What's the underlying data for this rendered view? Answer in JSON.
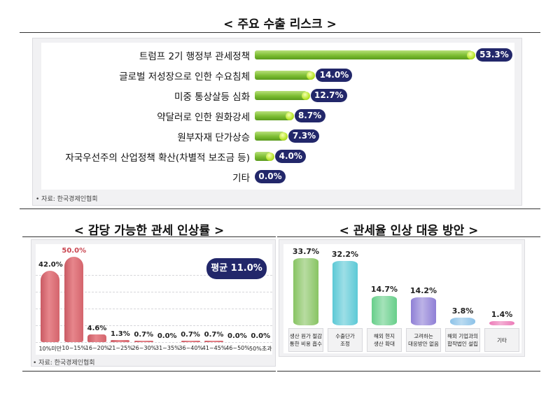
{
  "risk": {
    "title": "< 주요 수출 리스크 >",
    "source": "• 자료: 한국경제인협회",
    "colors": {
      "bar": "#7cbd32",
      "pill": "#22276a"
    }
  },
  "tariff": {
    "title": "< 감당 가능한 관세 인상률 >",
    "average_label": "평균 11.0%",
    "source": "• 자료: 한국경제인협회",
    "colors": {
      "bar": "#d4646c",
      "highlight_value": "#c94550"
    }
  },
  "response": {
    "title": "< 관세율 인상 대응 방안 >"
  },
  "chart_data": [
    {
      "type": "bar",
      "orientation": "horizontal",
      "title": "< 주요 수출 리스크 >",
      "categories": [
        "트럼프 2기 행정부 관세정책",
        "글로벌 저성장으로 인한 수요침체",
        "미중 통상살등 심화",
        "약달러로 인한 원화강세",
        "원부자재 단가상승",
        "자국우선주의 산업정책 확산(차별적 보조금 등)",
        "기타"
      ],
      "values": [
        53.3,
        14.0,
        12.7,
        8.7,
        7.3,
        4.0,
        0.0
      ],
      "labels": [
        "53.3%",
        "14.0%",
        "12.7%",
        "8.7%",
        "7.3%",
        "4.0%",
        "0.0%"
      ],
      "xlim": [
        0,
        53.3
      ],
      "grid": false
    },
    {
      "type": "bar",
      "title": "< 감당 가능한 관세 인상률 >",
      "categories": [
        "10%미만",
        "10~15%",
        "16~20%",
        "21~25%",
        "26~30%",
        "31~35%",
        "36~40%",
        "41~45%",
        "46~50%",
        "50%초과"
      ],
      "values": [
        42.0,
        50.0,
        4.6,
        1.3,
        0.7,
        0.0,
        0.7,
        0.7,
        0.0,
        0.0
      ],
      "labels": [
        "42.0%",
        "50.0%",
        "4.6%",
        "1.3%",
        "0.7%",
        "0.0%",
        "0.7%",
        "0.7%",
        "0.0%",
        "0.0%"
      ],
      "ylim": [
        0,
        50
      ],
      "grid": true
    },
    {
      "type": "bar",
      "title": "< 관세율 인상 대응 방안 >",
      "categories": [
        [
          "생산 원가 절감",
          "통한 비용 흡수"
        ],
        [
          "수출단가",
          "조정"
        ],
        [
          "해외 현지",
          "생산 확대"
        ],
        [
          "고려하는",
          "대응방안 없음"
        ],
        [
          "해외 기업과의",
          "합작법인 설립"
        ],
        [
          "기타"
        ]
      ],
      "values": [
        33.7,
        32.2,
        14.7,
        14.2,
        3.8,
        1.4
      ],
      "labels": [
        "33.7%",
        "32.2%",
        "14.7%",
        "14.2%",
        "3.8%",
        "1.4%"
      ],
      "colors": [
        "#88c463",
        "#5cc9d6",
        "#67cf8a",
        "#8f7fd6",
        "#8cc2e8",
        "#ec7bb8"
      ],
      "ylim": [
        0,
        33.7
      ],
      "grid": false
    }
  ]
}
